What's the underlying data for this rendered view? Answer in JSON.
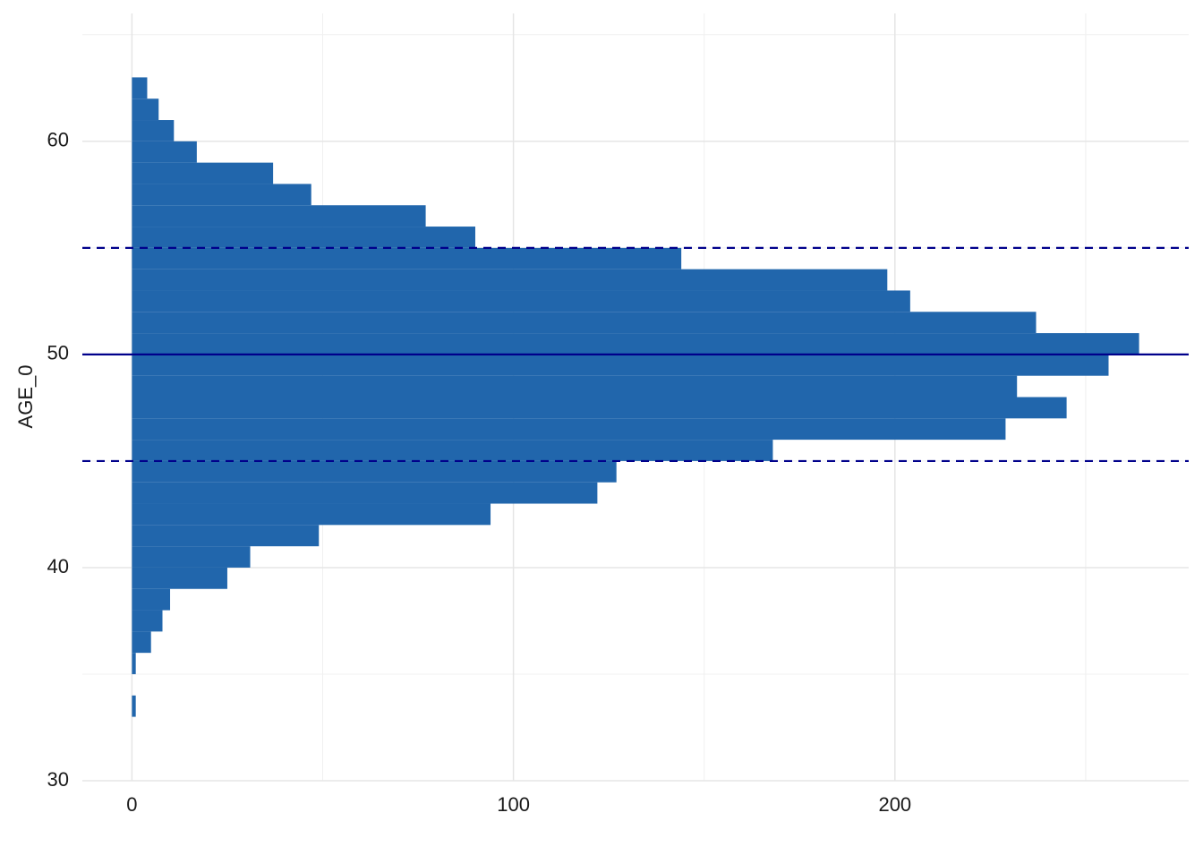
{
  "chart_data": {
    "type": "histogram",
    "orientation": "horizontal",
    "y_label": "AGE_0",
    "bins": [
      33,
      34,
      35,
      36,
      37,
      38,
      39,
      40,
      41,
      42,
      43,
      44,
      45,
      46,
      47,
      48,
      49,
      50,
      51,
      52,
      53,
      54,
      55,
      56,
      57,
      58,
      59,
      60,
      61,
      62,
      63
    ],
    "values": [
      1,
      0,
      1,
      5,
      8,
      10,
      25,
      31,
      49,
      94,
      122,
      127,
      168,
      229,
      245,
      232,
      256,
      264,
      237,
      204,
      198,
      144,
      90,
      77,
      47,
      37,
      17,
      11,
      7,
      4
    ],
    "color": "#2166ac",
    "xlim": [
      -13,
      277
    ],
    "xticks": [
      0,
      100,
      200
    ],
    "xminor": [
      50,
      150,
      250
    ],
    "ylim": [
      30,
      66
    ],
    "yticks": [
      30,
      40,
      50,
      60
    ],
    "yminor": [
      35,
      45,
      55,
      65
    ],
    "grid": true,
    "reference_lines": [
      {
        "value": 50,
        "style": "solid",
        "color": "#00008b"
      },
      {
        "value": 45,
        "style": "dashed",
        "color": "#00008b"
      },
      {
        "value": 55,
        "style": "dashed",
        "color": "#00008b"
      }
    ]
  }
}
